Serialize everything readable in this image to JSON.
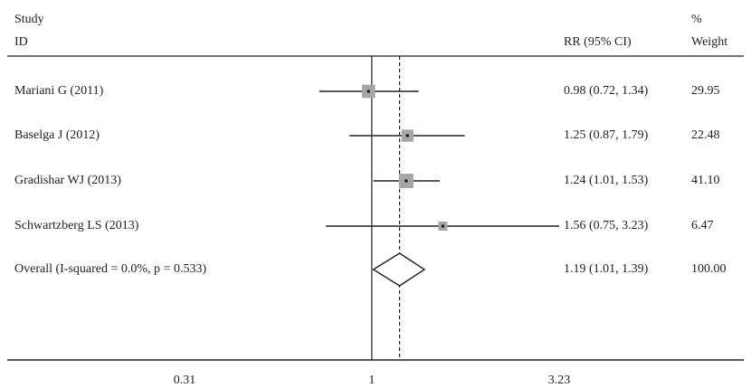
{
  "header": {
    "study_line1": "Study",
    "study_line2": "ID",
    "ci_header": "RR (95% CI)",
    "weight_line1": "%",
    "weight_line2": "Weight"
  },
  "chart_data": {
    "type": "forest",
    "scale": "log",
    "xlim": [
      0.31,
      3.23
    ],
    "reference_line": 1,
    "overall_line": 1.19,
    "x_ticks": [
      "0.31",
      "1",
      "3.23"
    ],
    "tick_values": [
      0.31,
      1,
      3.23
    ],
    "studies": [
      {
        "label": "Mariani G (2011)",
        "rr": 0.98,
        "lo": 0.72,
        "hi": 1.34,
        "ci_text": "0.98 (0.72, 1.34)",
        "weight": 29.95,
        "weight_text": "29.95"
      },
      {
        "label": "Baselga J (2012)",
        "rr": 1.25,
        "lo": 0.87,
        "hi": 1.79,
        "ci_text": "1.25 (0.87, 1.79)",
        "weight": 22.48,
        "weight_text": "22.48"
      },
      {
        "label": "Gradishar WJ (2013)",
        "rr": 1.24,
        "lo": 1.01,
        "hi": 1.53,
        "ci_text": "1.24 (1.01, 1.53)",
        "weight": 41.1,
        "weight_text": "41.10"
      },
      {
        "label": "Schwartzberg LS (2013)",
        "rr": 1.56,
        "lo": 0.75,
        "hi": 3.23,
        "ci_text": "1.56 (0.75, 3.23)",
        "weight": 6.47,
        "weight_text": "6.47"
      }
    ],
    "overall": {
      "label": "Overall  (I-squared = 0.0%, p = 0.533)",
      "rr": 1.19,
      "lo": 1.01,
      "hi": 1.39,
      "ci_text": "1.19 (1.01, 1.39)",
      "weight_text": "100.00"
    }
  }
}
